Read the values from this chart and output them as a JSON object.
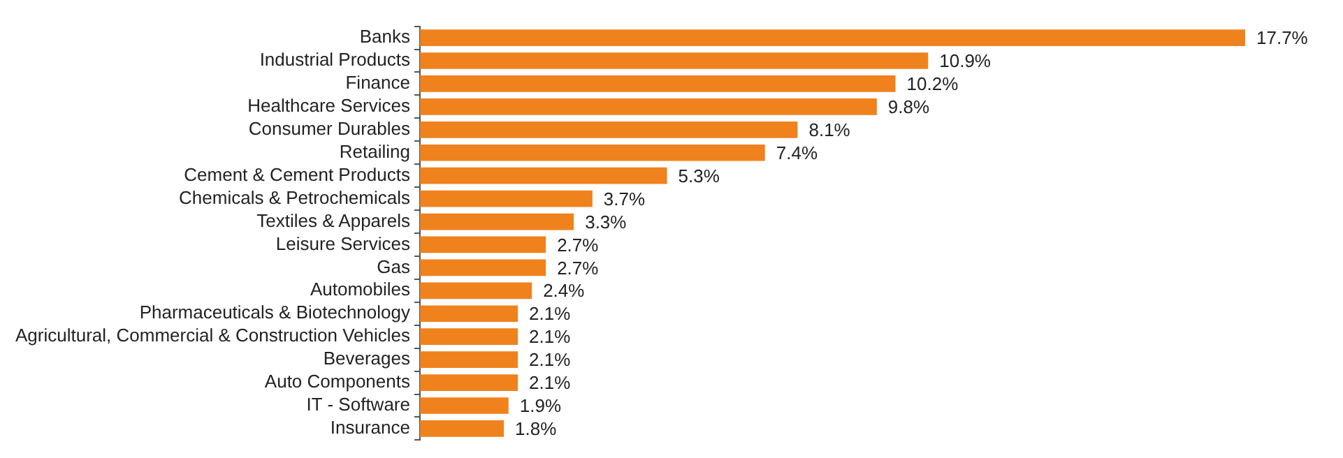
{
  "chart_data": {
    "type": "bar",
    "orientation": "horizontal",
    "categories": [
      "Banks",
      "Industrial Products",
      "Finance",
      "Healthcare Services",
      "Consumer Durables",
      "Retailing",
      "Cement & Cement Products",
      "Chemicals & Petrochemicals",
      "Textiles & Apparels",
      "Leisure Services",
      "Gas",
      "Automobiles",
      "Pharmaceuticals & Biotechnology",
      "Agricultural, Commercial & Construction Vehicles",
      "Beverages",
      "Auto Components",
      "IT - Software",
      "Insurance"
    ],
    "values": [
      17.7,
      10.9,
      10.2,
      9.8,
      8.1,
      7.4,
      5.3,
      3.7,
      3.3,
      2.7,
      2.7,
      2.4,
      2.1,
      2.1,
      2.1,
      2.1,
      1.9,
      1.8
    ],
    "value_labels": [
      "17.7%",
      "10.9%",
      "10.2%",
      "9.8%",
      "8.1%",
      "7.4%",
      "5.3%",
      "3.7%",
      "3.3%",
      "2.7%",
      "2.7%",
      "2.4%",
      "2.1%",
      "2.1%",
      "2.1%",
      "2.1%",
      "1.9%",
      "1.8%"
    ],
    "color": "#f0821e",
    "grid": false,
    "legend": false,
    "tick_labels": "y"
  }
}
